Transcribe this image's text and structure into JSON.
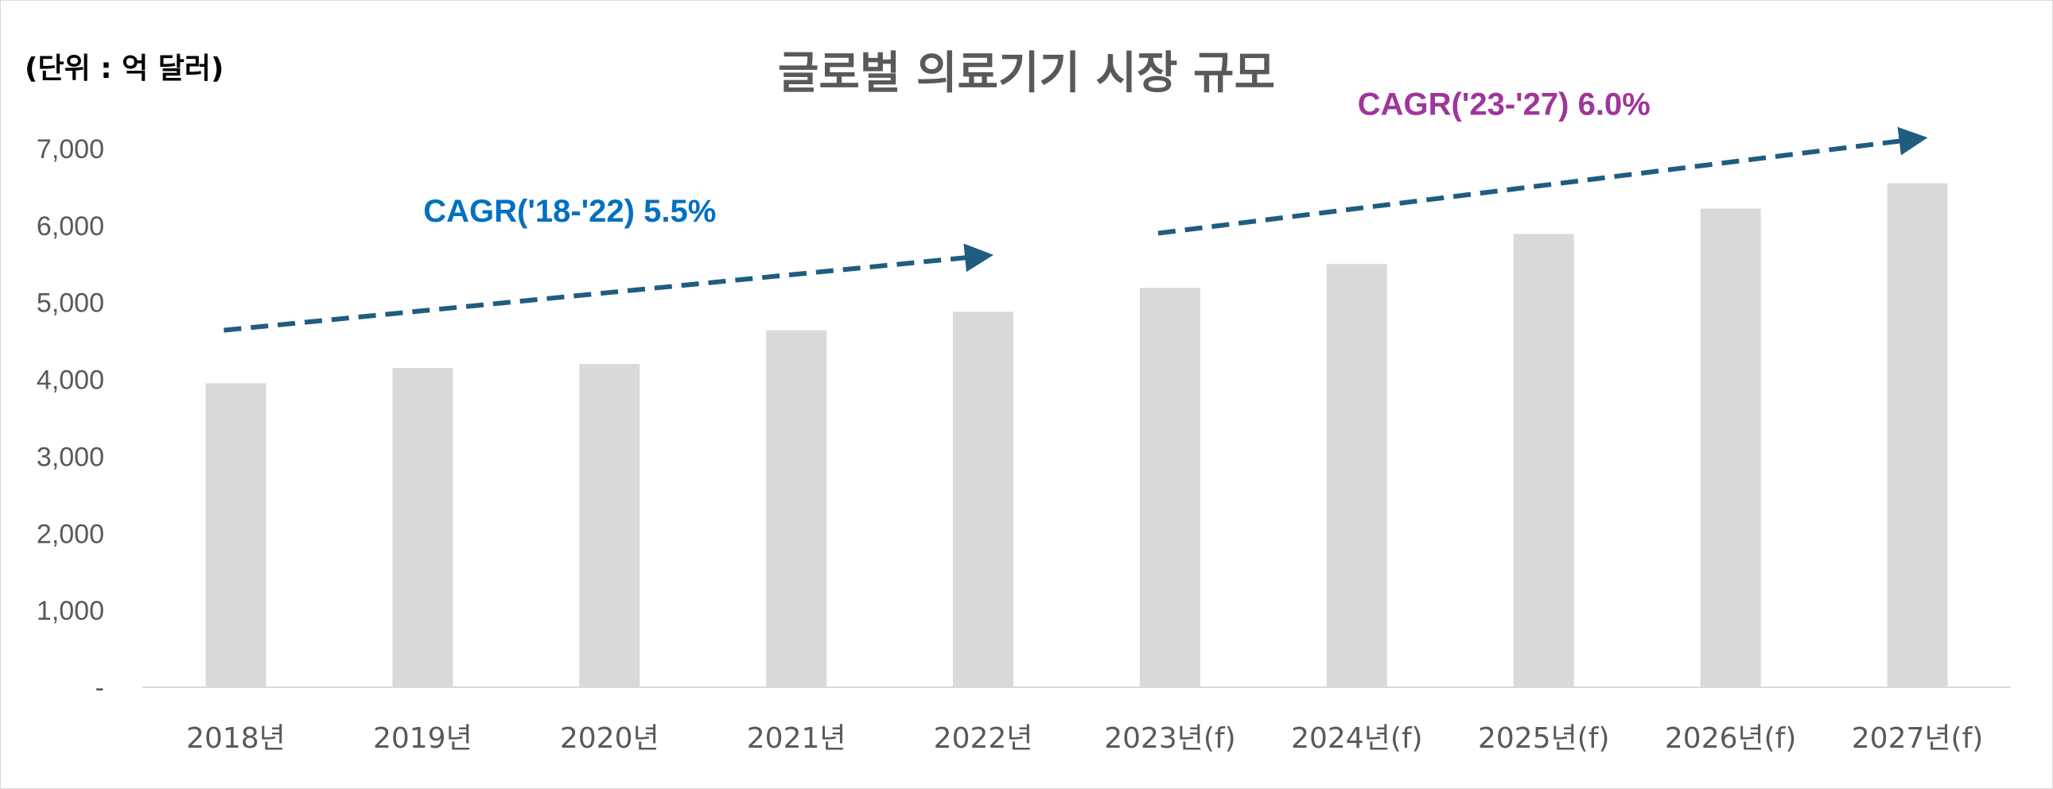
{
  "chart_data": {
    "type": "bar",
    "title": "글로벌 의료기기 시장 규모",
    "unit_label": "(단위 : 억 달러)",
    "categories": [
      "2018년",
      "2019년",
      "2020년",
      "2021년",
      "2022년",
      "2023년(f)",
      "2024년(f)",
      "2025년(f)",
      "2026년(f)",
      "2027년(f)"
    ],
    "values": [
      3950,
      4150,
      4200,
      4640,
      4880,
      5190,
      5500,
      5890,
      6220,
      6550
    ],
    "ylim": [
      0,
      7000
    ],
    "yticks": [
      {
        "value": 0,
        "label": "-"
      },
      {
        "value": 1000,
        "label": "1,000"
      },
      {
        "value": 2000,
        "label": "2,000"
      },
      {
        "value": 3000,
        "label": "3,000"
      },
      {
        "value": 4000,
        "label": "4,000"
      },
      {
        "value": 5000,
        "label": "5,000"
      },
      {
        "value": 6000,
        "label": "6,000"
      },
      {
        "value": 7000,
        "label": "7,000"
      }
    ],
    "grid": false,
    "bar_color": "#d9d9d9",
    "annotations": [
      {
        "text": "CAGR('18-'22) 5.5%",
        "color": "#0070c0",
        "from_category": 0,
        "to_category": 4,
        "from_value": 4640,
        "to_value": 5600
      },
      {
        "text": "CAGR('23-'27) 6.0%",
        "color": "#a0359a",
        "from_category": 5,
        "to_category": 9,
        "from_value": 5900,
        "to_value": 7120
      }
    ],
    "arrow_color": "#1f5c80"
  }
}
